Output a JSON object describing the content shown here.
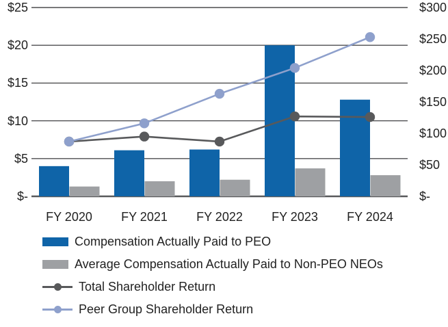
{
  "chart_data": {
    "type": "combo_bar_line",
    "title": "",
    "categories": [
      "FY 2020",
      "FY 2021",
      "FY 2022",
      "FY 2023",
      "FY 2024"
    ],
    "series": [
      {
        "name": "Compensation Actually Paid to PEO",
        "type": "bar",
        "axis": "left",
        "color": "#0F64A8",
        "values": [
          4.0,
          6.1,
          6.2,
          20.0,
          12.8
        ]
      },
      {
        "name": "Average Compensation Actually Paid to Non-PEO NEOs",
        "type": "bar",
        "axis": "left",
        "color": "#9EA0A3",
        "values": [
          1.3,
          2.0,
          2.2,
          3.7,
          2.8
        ]
      },
      {
        "name": "Total Shareholder Return",
        "type": "line",
        "axis": "right",
        "color": "#58595B",
        "values": [
          87,
          95,
          87,
          127,
          126
        ]
      },
      {
        "name": "Peer Group Shareholder Return",
        "type": "line",
        "axis": "right",
        "color": "#8EA0CC",
        "values": [
          87,
          116,
          163,
          204,
          253
        ]
      }
    ],
    "left_axis": {
      "min": 0,
      "max": 25,
      "tick_values": [
        25,
        20,
        15,
        10,
        5,
        0
      ],
      "ticks": [
        "$25",
        "$20",
        "$15",
        "$10",
        "$5",
        "$-"
      ]
    },
    "right_axis": {
      "min": 0,
      "max": 300,
      "tick_values": [
        300,
        250,
        200,
        150,
        100,
        50,
        0
      ],
      "ticks": [
        "$300",
        "$250",
        "$200",
        "$150",
        "$100",
        "$50",
        "$-"
      ]
    },
    "grid": true,
    "gridline_color": "#4D4D4F",
    "baseline_color": "#58595B",
    "legend_position": "bottom-left"
  }
}
